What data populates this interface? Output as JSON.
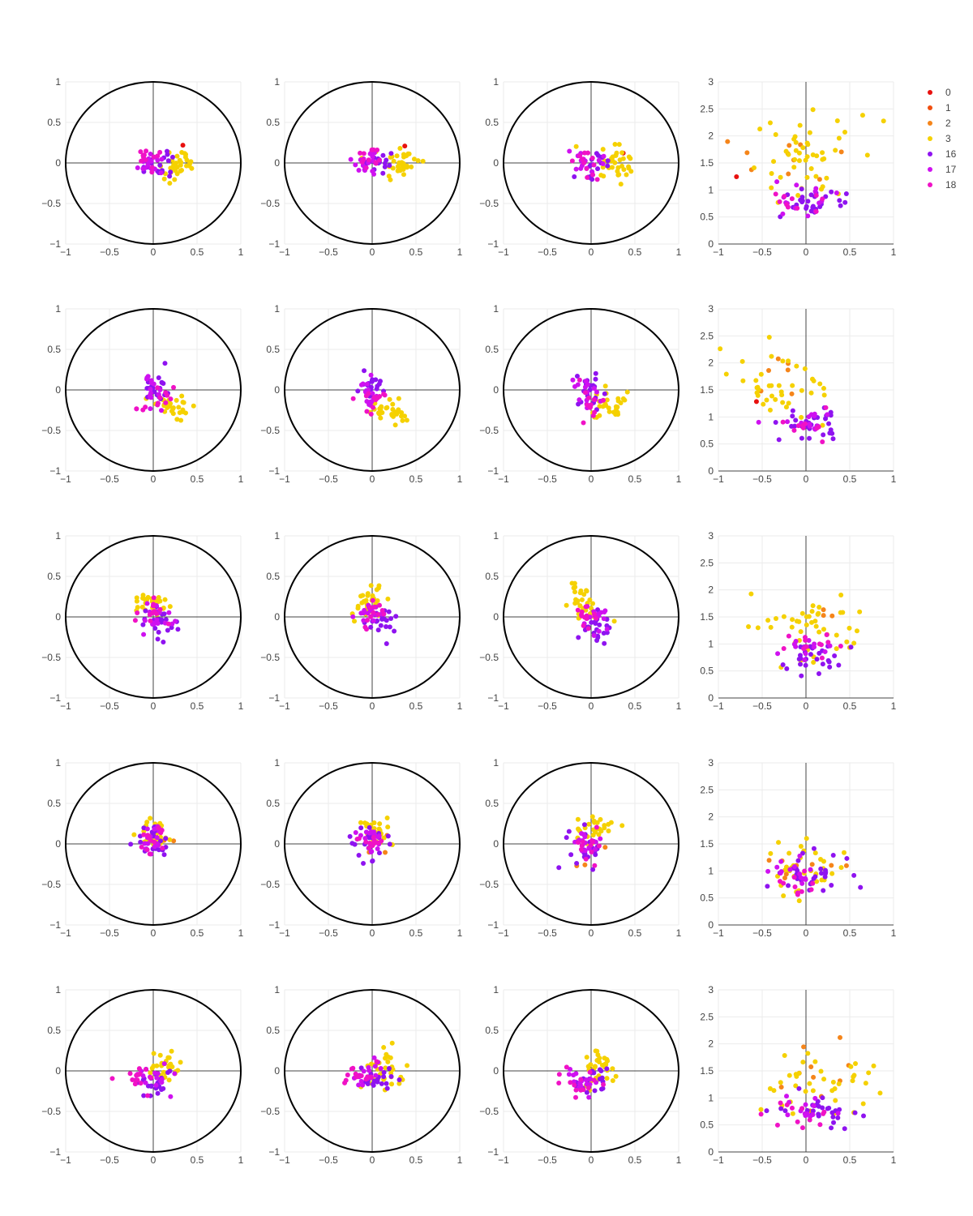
{
  "chart_data": {
    "type": "scatter",
    "grid": true,
    "legend_position": "top-right",
    "series_colors": {
      "0": "#e8110f",
      "1": "#f04e0f",
      "2": "#f5851a",
      "3": "#f5d100",
      "16": "#8f13f0",
      "17": "#cf11f0",
      "18": "#f012c6"
    },
    "legend": [
      {
        "name": "0",
        "color": "#e8110f"
      },
      {
        "name": "1",
        "color": "#f04e0f"
      },
      {
        "name": "2",
        "color": "#f5851a"
      },
      {
        "name": "3",
        "color": "#f5d100"
      },
      {
        "name": "16",
        "color": "#8f13f0"
      },
      {
        "name": "17",
        "color": "#cf11f0"
      },
      {
        "name": "18",
        "color": "#f012c6"
      }
    ],
    "unit_circle_panels": {
      "xlim": [
        -1,
        1
      ],
      "ylim": [
        -1,
        1
      ],
      "xticks": [
        "−1",
        "−0.5",
        "0",
        "0.5",
        "1"
      ],
      "yticks": [
        "−1",
        "−0.5",
        "0",
        "0.5",
        "1"
      ],
      "circle_radius": 1
    },
    "magnitude_panels": {
      "xlim": [
        -1,
        1
      ],
      "ylim": [
        0,
        3
      ],
      "xticks": [
        "−1",
        "−0.5",
        "0",
        "0.5",
        "1"
      ],
      "yticks": [
        "0",
        "0.5",
        "1",
        "1.5",
        "2",
        "2.5",
        "3"
      ]
    },
    "rows": [
      {
        "clusters": [
          {
            "group": "3",
            "cx": 0.3,
            "cy": 0.0,
            "sx": 0.11,
            "sy": 0.12,
            "n": 34
          },
          {
            "group": "16",
            "cx": 0.05,
            "cy": 0.0,
            "sx": 0.1,
            "sy": 0.09,
            "n": 18
          },
          {
            "group": "17",
            "cx": -0.05,
            "cy": 0.02,
            "sx": 0.09,
            "sy": 0.09,
            "n": 16
          },
          {
            "group": "18",
            "cx": -0.05,
            "cy": 0.03,
            "sx": 0.08,
            "sy": 0.08,
            "n": 12
          },
          {
            "group": "0",
            "cx": 0.35,
            "cy": 0.2,
            "sx": 0.01,
            "sy": 0.01,
            "n": 1
          }
        ],
        "magnitude": [
          {
            "group": "3",
            "cx": 0.0,
            "cy": 1.65,
            "sx": 0.38,
            "sy": 0.35,
            "n": 48
          },
          {
            "group": "2",
            "cx": -0.2,
            "cy": 1.6,
            "sx": 0.3,
            "sy": 0.3,
            "n": 10
          },
          {
            "group": "16",
            "cx": 0.1,
            "cy": 0.8,
            "sx": 0.2,
            "sy": 0.14,
            "n": 28
          },
          {
            "group": "17",
            "cx": 0.0,
            "cy": 0.8,
            "sx": 0.18,
            "sy": 0.15,
            "n": 14
          },
          {
            "group": "18",
            "cx": -0.1,
            "cy": 0.75,
            "sx": 0.2,
            "sy": 0.1,
            "n": 10
          },
          {
            "group": "0",
            "cx": -0.8,
            "cy": 1.25,
            "sx": 0.01,
            "sy": 0.01,
            "n": 1
          }
        ]
      },
      {
        "clusters": [
          {
            "group": "3",
            "cx": 0.2,
            "cy": -0.25,
            "sx": 0.1,
            "sy": 0.08,
            "n": 30
          },
          {
            "group": "16",
            "cx": 0.0,
            "cy": 0.02,
            "sx": 0.08,
            "sy": 0.11,
            "n": 20
          },
          {
            "group": "17",
            "cx": -0.03,
            "cy": 0.0,
            "sx": 0.08,
            "sy": 0.11,
            "n": 16
          },
          {
            "group": "18",
            "cx": 0.05,
            "cy": -0.12,
            "sx": 0.09,
            "sy": 0.1,
            "n": 12
          }
        ],
        "magnitude": [
          {
            "group": "3",
            "cx": -0.25,
            "cy": 1.6,
            "sx": 0.3,
            "sy": 0.3,
            "n": 40
          },
          {
            "group": "2",
            "cx": -0.3,
            "cy": 1.9,
            "sx": 0.15,
            "sy": 0.2,
            "n": 6
          },
          {
            "group": "16",
            "cx": 0.0,
            "cy": 0.85,
            "sx": 0.18,
            "sy": 0.13,
            "n": 30
          },
          {
            "group": "17",
            "cx": 0.0,
            "cy": 0.85,
            "sx": 0.18,
            "sy": 0.15,
            "n": 14
          },
          {
            "group": "18",
            "cx": 0.0,
            "cy": 0.9,
            "sx": 0.2,
            "sy": 0.15,
            "n": 10
          },
          {
            "group": "0",
            "cx": -0.58,
            "cy": 1.27,
            "sx": 0.01,
            "sy": 0.01,
            "n": 1
          }
        ]
      },
      {
        "clusters": [
          {
            "group": "3",
            "cx": -0.05,
            "cy": 0.15,
            "sx": 0.1,
            "sy": 0.1,
            "n": 30
          },
          {
            "group": "16",
            "cx": 0.08,
            "cy": -0.05,
            "sx": 0.1,
            "sy": 0.11,
            "n": 22
          },
          {
            "group": "17",
            "cx": 0.02,
            "cy": 0.03,
            "sx": 0.09,
            "sy": 0.1,
            "n": 16
          },
          {
            "group": "18",
            "cx": 0.0,
            "cy": 0.05,
            "sx": 0.08,
            "sy": 0.1,
            "n": 12
          }
        ],
        "magnitude": [
          {
            "group": "3",
            "cx": 0.0,
            "cy": 1.35,
            "sx": 0.35,
            "sy": 0.25,
            "n": 44
          },
          {
            "group": "2",
            "cx": 0.2,
            "cy": 1.35,
            "sx": 0.1,
            "sy": 0.25,
            "n": 4
          },
          {
            "group": "16",
            "cx": 0.1,
            "cy": 0.75,
            "sx": 0.2,
            "sy": 0.15,
            "n": 28
          },
          {
            "group": "17",
            "cx": 0.0,
            "cy": 0.9,
            "sx": 0.2,
            "sy": 0.15,
            "n": 14
          },
          {
            "group": "18",
            "cx": 0.0,
            "cy": 1.0,
            "sx": 0.2,
            "sy": 0.18,
            "n": 12
          }
        ]
      },
      {
        "clusters": [
          {
            "group": "3",
            "cx": 0.05,
            "cy": 0.15,
            "sx": 0.1,
            "sy": 0.09,
            "n": 28
          },
          {
            "group": "16",
            "cx": 0.0,
            "cy": 0.02,
            "sx": 0.1,
            "sy": 0.12,
            "n": 22
          },
          {
            "group": "17",
            "cx": 0.0,
            "cy": 0.08,
            "sx": 0.08,
            "sy": 0.09,
            "n": 16
          },
          {
            "group": "18",
            "cx": 0.02,
            "cy": 0.05,
            "sx": 0.08,
            "sy": 0.09,
            "n": 12
          },
          {
            "group": "2",
            "cx": 0.05,
            "cy": 0.0,
            "sx": 0.1,
            "sy": 0.1,
            "n": 4
          }
        ],
        "magnitude": [
          {
            "group": "3",
            "cx": -0.05,
            "cy": 1.0,
            "sx": 0.25,
            "sy": 0.25,
            "n": 34
          },
          {
            "group": "2",
            "cx": -0.1,
            "cy": 1.1,
            "sx": 0.25,
            "sy": 0.15,
            "n": 8
          },
          {
            "group": "16",
            "cx": 0.05,
            "cy": 0.95,
            "sx": 0.25,
            "sy": 0.2,
            "n": 30
          },
          {
            "group": "17",
            "cx": -0.1,
            "cy": 0.9,
            "sx": 0.15,
            "sy": 0.15,
            "n": 16
          },
          {
            "group": "18",
            "cx": -0.1,
            "cy": 0.8,
            "sx": 0.15,
            "sy": 0.12,
            "n": 10
          }
        ]
      },
      {
        "clusters": [
          {
            "group": "3",
            "cx": 0.15,
            "cy": 0.05,
            "sx": 0.1,
            "sy": 0.12,
            "n": 32
          },
          {
            "group": "16",
            "cx": 0.02,
            "cy": -0.12,
            "sx": 0.1,
            "sy": 0.1,
            "n": 22
          },
          {
            "group": "17",
            "cx": -0.05,
            "cy": -0.05,
            "sx": 0.11,
            "sy": 0.09,
            "n": 16
          },
          {
            "group": "18",
            "cx": -0.15,
            "cy": -0.1,
            "sx": 0.12,
            "sy": 0.09,
            "n": 14
          }
        ],
        "magnitude": [
          {
            "group": "3",
            "cx": 0.1,
            "cy": 1.3,
            "sx": 0.35,
            "sy": 0.3,
            "n": 40
          },
          {
            "group": "2",
            "cx": 0.2,
            "cy": 1.4,
            "sx": 0.3,
            "sy": 0.3,
            "n": 10
          },
          {
            "group": "16",
            "cx": 0.15,
            "cy": 0.8,
            "sx": 0.2,
            "sy": 0.15,
            "n": 28
          },
          {
            "group": "17",
            "cx": 0.05,
            "cy": 0.8,
            "sx": 0.18,
            "sy": 0.15,
            "n": 14
          },
          {
            "group": "18",
            "cx": -0.1,
            "cy": 0.65,
            "sx": 0.2,
            "sy": 0.15,
            "n": 12
          }
        ]
      }
    ]
  }
}
